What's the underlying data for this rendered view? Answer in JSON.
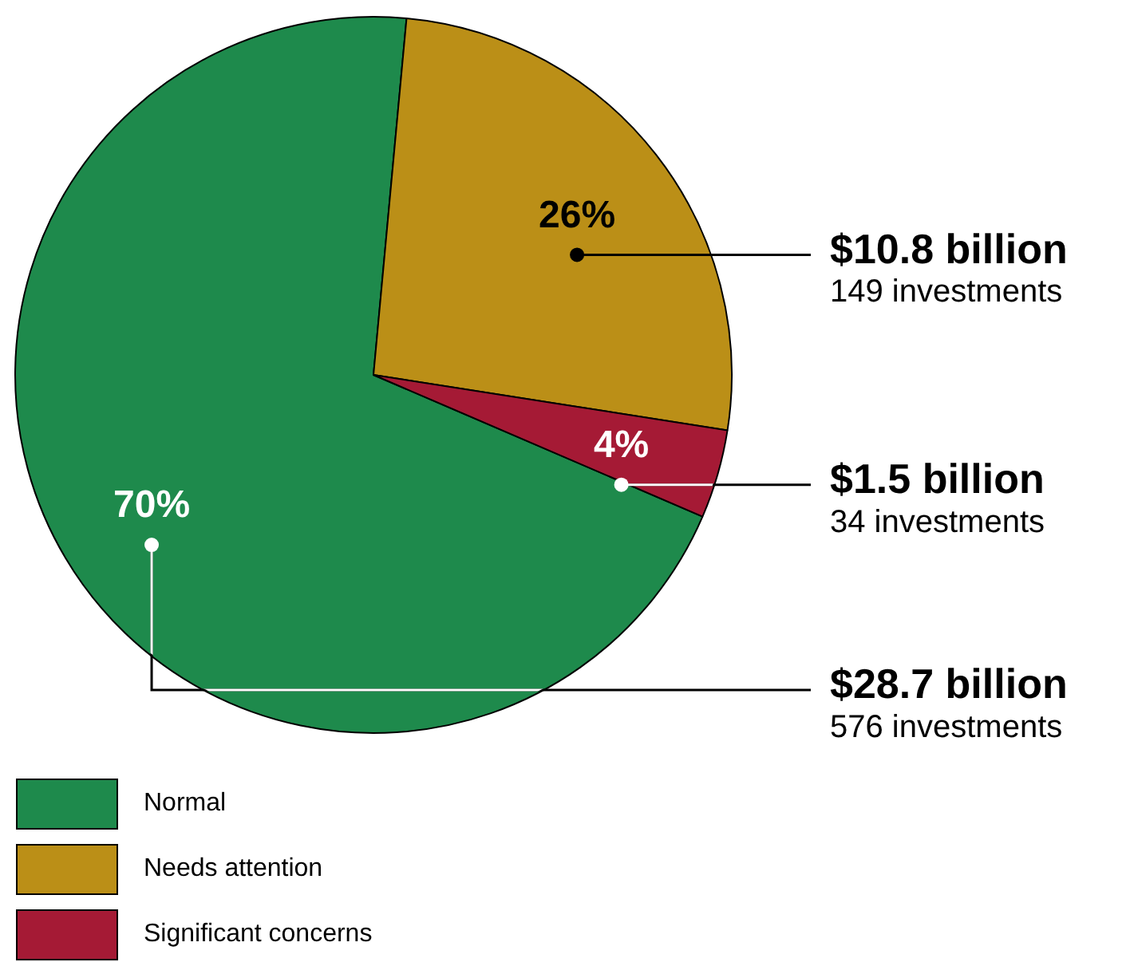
{
  "chart_data": {
    "type": "pie",
    "categories": [
      "Normal",
      "Needs attention",
      "Significant concerns"
    ],
    "values": [
      70,
      26,
      4
    ],
    "colors": [
      "#1e8a4c",
      "#bb8f17",
      "#a51a35"
    ],
    "value_labels": [
      "70%",
      "26%",
      "4%"
    ],
    "annotations": [
      "$28.7 billion",
      "576 investments",
      "$10.8 billion",
      "149 investments",
      "$1.5 billion",
      "34 investments"
    ],
    "legend": "bottom left"
  }
}
